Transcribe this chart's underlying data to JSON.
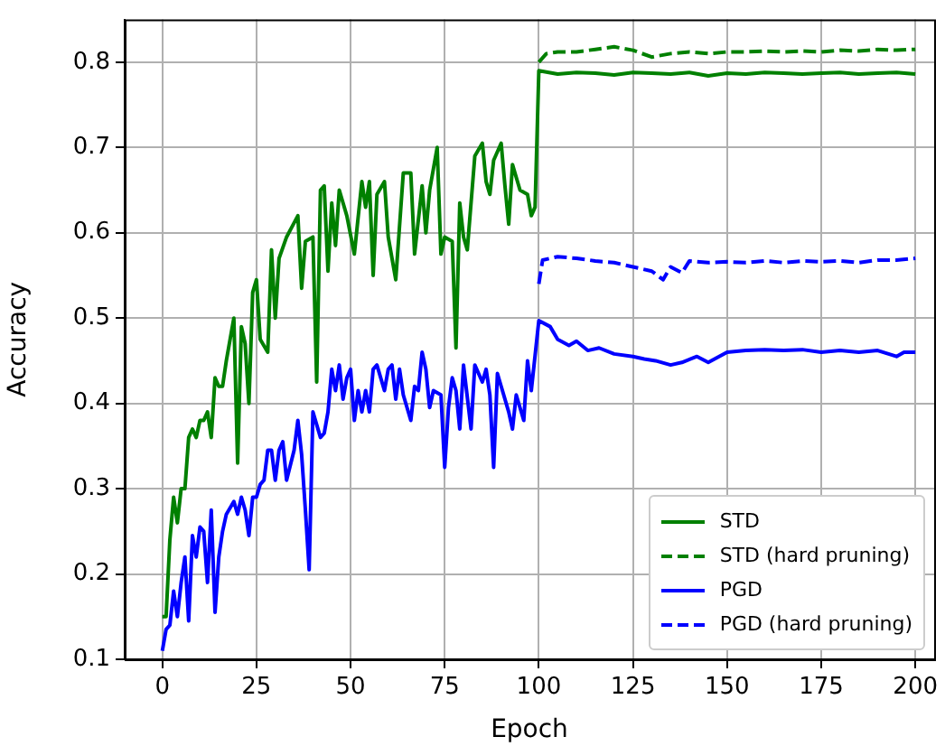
{
  "chart_data": {
    "type": "line",
    "xlabel": "Epoch",
    "ylabel": "Accuracy",
    "xlim": [
      -10,
      205
    ],
    "xticks": [
      0,
      25,
      50,
      75,
      100,
      125,
      150,
      175,
      200
    ],
    "ylim": [
      0.1,
      0.85
    ],
    "yticks": [
      0.1,
      0.2,
      0.3,
      0.4,
      0.5,
      0.6,
      0.7,
      0.8
    ],
    "grid": true,
    "legend": "bottom right",
    "marker": "none",
    "series": [
      {
        "name": "STD",
        "color": "#008000",
        "line_style": "solid",
        "x": [
          0,
          1,
          2,
          3,
          4,
          5,
          6,
          7,
          8,
          9,
          10,
          11,
          12,
          13,
          14,
          15,
          16,
          17,
          19,
          20,
          21,
          22,
          23,
          24,
          25,
          26,
          28,
          29,
          30,
          31,
          33,
          36,
          37,
          38,
          40,
          41,
          42,
          43,
          44,
          45,
          46,
          47,
          49,
          51,
          53,
          54,
          55,
          56,
          57,
          59,
          60,
          62,
          64,
          66,
          67,
          69,
          70,
          71,
          73,
          74,
          75,
          77,
          78,
          79,
          80,
          81,
          83,
          85,
          86,
          87,
          88,
          90,
          91,
          92,
          93,
          95,
          97,
          98,
          99,
          100,
          105,
          110,
          115,
          120,
          125,
          130,
          135,
          140,
          145,
          150,
          155,
          160,
          165,
          170,
          175,
          180,
          185,
          190,
          195,
          200
        ],
        "values": [
          0.15,
          0.15,
          0.24,
          0.29,
          0.26,
          0.3,
          0.3,
          0.36,
          0.37,
          0.36,
          0.38,
          0.38,
          0.39,
          0.36,
          0.43,
          0.42,
          0.42,
          0.45,
          0.5,
          0.33,
          0.49,
          0.47,
          0.4,
          0.53,
          0.545,
          0.475,
          0.46,
          0.58,
          0.5,
          0.57,
          0.595,
          0.62,
          0.535,
          0.59,
          0.595,
          0.425,
          0.65,
          0.655,
          0.555,
          0.635,
          0.585,
          0.65,
          0.62,
          0.575,
          0.66,
          0.63,
          0.66,
          0.55,
          0.645,
          0.66,
          0.595,
          0.545,
          0.67,
          0.67,
          0.575,
          0.655,
          0.6,
          0.65,
          0.7,
          0.575,
          0.595,
          0.59,
          0.465,
          0.635,
          0.595,
          0.58,
          0.69,
          0.705,
          0.66,
          0.645,
          0.685,
          0.705,
          0.655,
          0.61,
          0.68,
          0.65,
          0.645,
          0.62,
          0.63,
          0.79,
          0.786,
          0.788,
          0.787,
          0.785,
          0.788,
          0.787,
          0.786,
          0.788,
          0.784,
          0.787,
          0.786,
          0.788,
          0.787,
          0.786,
          0.787,
          0.788,
          0.786,
          0.787,
          0.788,
          0.786
        ]
      },
      {
        "name": "STD (hard pruning)",
        "color": "#008000",
        "line_style": "dashed",
        "x": [
          100,
          102,
          105,
          110,
          115,
          120,
          125,
          130,
          135,
          140,
          145,
          150,
          155,
          160,
          165,
          170,
          175,
          180,
          185,
          190,
          195,
          200
        ],
        "values": [
          0.8,
          0.81,
          0.812,
          0.812,
          0.815,
          0.818,
          0.814,
          0.806,
          0.81,
          0.812,
          0.81,
          0.812,
          0.812,
          0.813,
          0.812,
          0.813,
          0.812,
          0.814,
          0.813,
          0.815,
          0.814,
          0.815
        ]
      },
      {
        "name": "PGD",
        "color": "#0000ff",
        "line_style": "solid",
        "x": [
          0,
          1,
          2,
          3,
          4,
          5,
          6,
          7,
          8,
          9,
          10,
          11,
          12,
          13,
          14,
          15,
          16,
          17,
          19,
          20,
          21,
          22,
          23,
          24,
          25,
          26,
          27,
          28,
          29,
          30,
          31,
          32,
          33,
          35,
          36,
          37,
          38,
          39,
          40,
          42,
          43,
          44,
          45,
          46,
          47,
          48,
          49,
          50,
          51,
          52,
          53,
          54,
          55,
          56,
          57,
          59,
          60,
          61,
          62,
          63,
          64,
          66,
          67,
          68,
          69,
          70,
          71,
          72,
          74,
          75,
          76,
          77,
          78,
          79,
          80,
          82,
          83,
          85,
          86,
          87,
          88,
          89,
          90,
          92,
          93,
          94,
          96,
          97,
          98,
          100,
          103,
          105,
          108,
          110,
          113,
          116,
          120,
          125,
          128,
          131,
          135,
          138,
          142,
          145,
          150,
          155,
          160,
          165,
          170,
          175,
          180,
          185,
          190,
          195,
          197,
          200
        ],
        "values": [
          0.11,
          0.135,
          0.14,
          0.18,
          0.15,
          0.19,
          0.22,
          0.145,
          0.245,
          0.22,
          0.255,
          0.25,
          0.19,
          0.275,
          0.155,
          0.22,
          0.25,
          0.27,
          0.285,
          0.27,
          0.29,
          0.275,
          0.245,
          0.29,
          0.29,
          0.305,
          0.31,
          0.345,
          0.345,
          0.31,
          0.345,
          0.355,
          0.31,
          0.345,
          0.38,
          0.34,
          0.275,
          0.205,
          0.39,
          0.36,
          0.365,
          0.39,
          0.44,
          0.415,
          0.445,
          0.405,
          0.43,
          0.44,
          0.38,
          0.415,
          0.39,
          0.415,
          0.39,
          0.44,
          0.445,
          0.415,
          0.44,
          0.445,
          0.405,
          0.44,
          0.41,
          0.38,
          0.42,
          0.415,
          0.46,
          0.44,
          0.395,
          0.415,
          0.41,
          0.325,
          0.395,
          0.43,
          0.415,
          0.37,
          0.445,
          0.37,
          0.445,
          0.425,
          0.44,
          0.41,
          0.325,
          0.435,
          0.42,
          0.39,
          0.37,
          0.41,
          0.38,
          0.45,
          0.415,
          0.497,
          0.49,
          0.475,
          0.468,
          0.473,
          0.462,
          0.465,
          0.458,
          0.455,
          0.452,
          0.45,
          0.445,
          0.448,
          0.455,
          0.448,
          0.46,
          0.462,
          0.463,
          0.462,
          0.463,
          0.46,
          0.462,
          0.46,
          0.462,
          0.455,
          0.46,
          0.46
        ]
      },
      {
        "name": "PGD (hard pruning)",
        "color": "#0000ff",
        "line_style": "dashed",
        "x": [
          100,
          101,
          105,
          110,
          115,
          120,
          125,
          130,
          133,
          135,
          138,
          140,
          145,
          150,
          155,
          160,
          165,
          170,
          175,
          180,
          185,
          190,
          195,
          200
        ],
        "values": [
          0.54,
          0.568,
          0.572,
          0.57,
          0.567,
          0.565,
          0.56,
          0.555,
          0.545,
          0.56,
          0.553,
          0.567,
          0.565,
          0.566,
          0.565,
          0.567,
          0.565,
          0.567,
          0.566,
          0.567,
          0.565,
          0.568,
          0.568,
          0.57
        ]
      }
    ]
  }
}
